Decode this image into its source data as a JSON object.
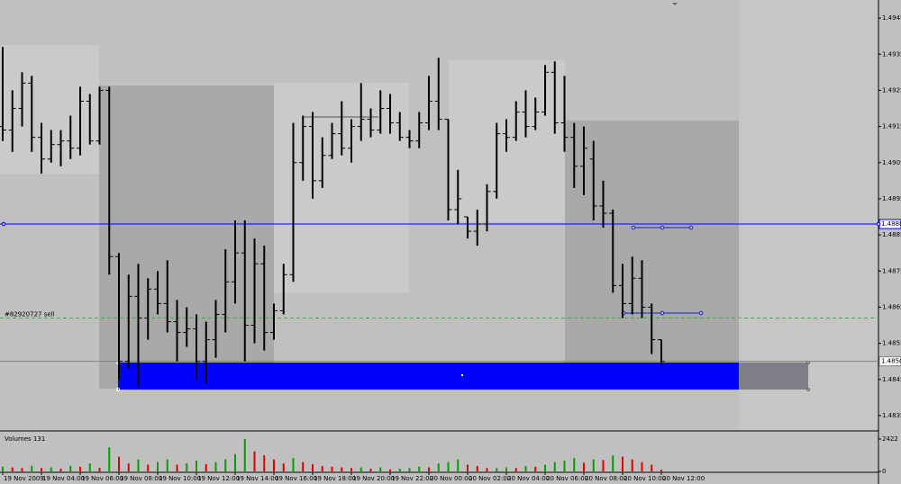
{
  "chart_data": {
    "type": "ohlc",
    "categories": [
      "19 Nov 2009",
      null,
      null,
      null,
      "19 Nov 04:00",
      null,
      null,
      null,
      "19 Nov 06:00",
      null,
      null,
      null,
      "19 Nov 08:00",
      null,
      null,
      null,
      "19 Nov 10:00",
      null,
      null,
      null,
      "19 Nov 12:00",
      null,
      null,
      null,
      "19 Nov 14:00",
      null,
      null,
      null,
      "19 Nov 16:00",
      null,
      null,
      null,
      "19 Nov 18:00",
      null,
      null,
      null,
      "19 Nov 20:00",
      null,
      null,
      null,
      "19 Nov 22:00",
      null,
      null,
      null,
      "20 Nov 00:00",
      null,
      null,
      null,
      "20 Nov 02:00",
      null,
      null,
      null,
      "20 Nov 04:00",
      null,
      null,
      null,
      "20 Nov 06:00",
      null,
      null,
      null,
      "20 Nov 08:00",
      null,
      null,
      null,
      "20 Nov 10:00",
      null,
      null,
      null,
      "20 Nov 12:00"
    ],
    "open": [
      1.4915,
      1.4914,
      1.492,
      1.4927,
      1.4912,
      1.4906,
      1.491,
      1.4911,
      1.4909,
      1.4922,
      1.4911,
      1.4925,
      1.4879,
      1.485,
      1.4868,
      1.4862,
      1.487,
      1.4866,
      1.4861,
      1.4858,
      1.4859,
      1.485,
      1.4856,
      1.4863,
      1.4872,
      1.488,
      1.486,
      1.4877,
      1.4858,
      1.4864,
      1.4874,
      1.4905,
      1.4915,
      1.49,
      1.4907,
      1.4913,
      1.4909,
      1.4915,
      1.4917,
      1.4914,
      1.492,
      1.4916,
      1.4912,
      1.4911,
      1.4916,
      1.4922,
      1.4917,
      1.4892,
      1.489,
      1.4886,
      1.4888,
      1.4897,
      1.4913,
      1.4912,
      1.4919,
      1.4915,
      1.4919,
      1.493,
      1.4916,
      1.4912,
      1.4904,
      1.4906,
      1.4893,
      1.4891,
      1.4871,
      1.4866,
      1.4873,
      1.4865,
      1.4856
    ],
    "high": [
      1.4937,
      1.4925,
      1.493,
      1.4929,
      1.4916,
      1.4914,
      1.4914,
      1.4918,
      1.4926,
      1.4924,
      1.4926,
      1.4926,
      1.488,
      1.4874,
      1.4877,
      1.4873,
      1.4875,
      1.4878,
      1.4867,
      1.4865,
      1.4863,
      1.4861,
      1.4867,
      1.4881,
      1.4889,
      1.4889,
      1.4884,
      1.4882,
      1.4866,
      1.4877,
      1.4916,
      1.4918,
      1.4919,
      1.4912,
      1.4916,
      1.4922,
      1.4917,
      1.4927,
      1.492,
      1.4925,
      1.4924,
      1.4919,
      1.4914,
      1.4919,
      1.4929,
      1.4934,
      1.4917,
      1.4903,
      1.489,
      1.4892,
      1.4899,
      1.4916,
      1.4917,
      1.4922,
      1.4925,
      1.4923,
      1.4932,
      1.4933,
      1.4929,
      1.4916,
      1.4915,
      1.4911,
      1.49,
      1.4892,
      1.4877,
      1.4879,
      1.4878,
      1.4866,
      1.4856
    ],
    "low": [
      1.4911,
      1.4908,
      1.4915,
      1.4908,
      1.4902,
      1.4905,
      1.4904,
      1.4906,
      1.4907,
      1.491,
      1.491,
      1.4874,
      1.4845,
      1.4848,
      1.4843,
      1.4856,
      1.4863,
      1.4858,
      1.485,
      1.4854,
      1.4845,
      1.4844,
      1.4851,
      1.4858,
      1.4866,
      1.485,
      1.4855,
      1.4853,
      1.4856,
      1.4863,
      1.4872,
      1.49,
      1.4895,
      1.4898,
      1.4906,
      1.4907,
      1.4905,
      1.4911,
      1.4912,
      1.4913,
      1.4913,
      1.4911,
      1.4909,
      1.4909,
      1.4914,
      1.4914,
      1.4889,
      1.4888,
      1.4884,
      1.4882,
      1.4886,
      1.4895,
      1.4908,
      1.4911,
      1.4912,
      1.4914,
      1.4918,
      1.4913,
      1.4908,
      1.4898,
      1.4896,
      1.4889,
      1.4887,
      1.4869,
      1.4862,
      1.4863,
      1.4862,
      1.4852,
      1.4849
    ],
    "close": [
      1.4914,
      1.492,
      1.4927,
      1.4912,
      1.4906,
      1.491,
      1.4911,
      1.4909,
      1.4922,
      1.4911,
      1.4925,
      1.4879,
      1.485,
      1.4868,
      1.4862,
      1.487,
      1.4866,
      1.4861,
      1.4858,
      1.4859,
      1.485,
      1.4856,
      1.4863,
      1.4872,
      1.488,
      1.486,
      1.4877,
      1.4858,
      1.4864,
      1.4874,
      1.4905,
      1.4915,
      1.49,
      1.4907,
      1.4913,
      1.4909,
      1.4915,
      1.4917,
      1.4914,
      1.492,
      1.4916,
      1.4912,
      1.4911,
      1.4916,
      1.4922,
      1.4917,
      1.4892,
      1.4895,
      1.4886,
      1.4888,
      1.4897,
      1.4913,
      1.4912,
      1.4919,
      1.4915,
      1.4919,
      1.493,
      1.4916,
      1.4912,
      1.4904,
      1.4909,
      1.4893,
      1.4891,
      1.4871,
      1.4866,
      1.4873,
      1.4865,
      1.4856,
      1.485
    ],
    "color": "#000000",
    "ylim": [
      1.4831,
      1.495
    ],
    "yticks": [
      1.4945,
      1.4935,
      1.4925,
      1.4915,
      1.4905,
      1.4895,
      1.4885,
      1.4875,
      1.4865,
      1.4855,
      1.4845,
      1.4835
    ],
    "levels": [
      {
        "value": 1.4888,
        "color": "#0000ff"
      },
      {
        "value": 1.485,
        "label": "1.4850",
        "color": "#808080"
      }
    ],
    "order_line": {
      "value": 1.4862,
      "label": "#82920727 sell",
      "color": "#3cb43c"
    },
    "volume": {
      "title": "Volumes 131",
      "values": [
        350,
        300,
        250,
        420,
        250,
        300,
        200,
        420,
        350,
        600,
        260,
        1800,
        1100,
        600,
        900,
        500,
        700,
        900,
        500,
        600,
        800,
        550,
        700,
        900,
        1300,
        2422,
        1500,
        1200,
        900,
        600,
        1000,
        700,
        550,
        400,
        350,
        300,
        250,
        300,
        200,
        300,
        150,
        200,
        250,
        350,
        300,
        600,
        700,
        900,
        500,
        400,
        250,
        250,
        300,
        250,
        400,
        350,
        500,
        700,
        800,
        1000,
        650,
        900,
        850,
        1200,
        1100,
        900,
        700,
        500,
        131
      ],
      "ylim": [
        0,
        2422
      ],
      "yticks": [
        0,
        2422
      ],
      "up_color": "#00a000",
      "down_color": "#e00000"
    }
  }
}
